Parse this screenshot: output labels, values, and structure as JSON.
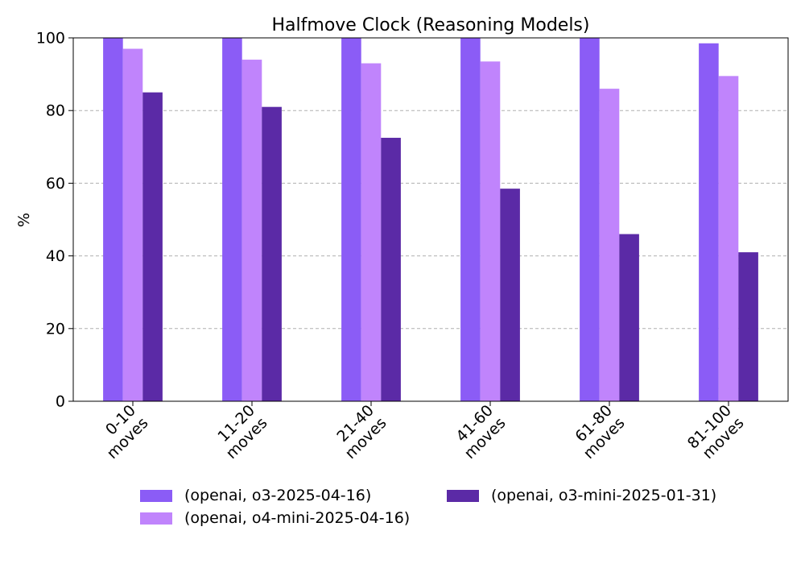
{
  "chart_data": {
    "type": "bar",
    "title": "Halfmove Clock (Reasoning Models)",
    "xlabel": "",
    "ylabel": "%",
    "ylim": [
      0,
      100
    ],
    "yticks": [
      0,
      20,
      40,
      60,
      80,
      100
    ],
    "grid": "y dashed",
    "legend_position": "bottom",
    "categories": [
      "0-10\nmoves",
      "11-20\nmoves",
      "21-40\nmoves",
      "41-60\nmoves",
      "61-80\nmoves",
      "81-100\nmoves"
    ],
    "category_lines": [
      [
        "0-10",
        "moves"
      ],
      [
        "11-20",
        "moves"
      ],
      [
        "21-40",
        "moves"
      ],
      [
        "41-60",
        "moves"
      ],
      [
        "61-80",
        "moves"
      ],
      [
        "81-100",
        "moves"
      ]
    ],
    "series": [
      {
        "name": "(openai, o3-2025-04-16)",
        "color": "#8b5cf6",
        "values": [
          100,
          100,
          100,
          100,
          100,
          98.5
        ]
      },
      {
        "name": "(openai, o4-mini-2025-04-16)",
        "color": "#c084fc",
        "values": [
          97,
          94,
          93,
          93.5,
          86,
          89.5
        ]
      },
      {
        "name": "(openai, o3-mini-2025-01-31)",
        "color": "#5b2aa6",
        "values": [
          85,
          81,
          72.5,
          58.5,
          46,
          41
        ]
      }
    ]
  }
}
